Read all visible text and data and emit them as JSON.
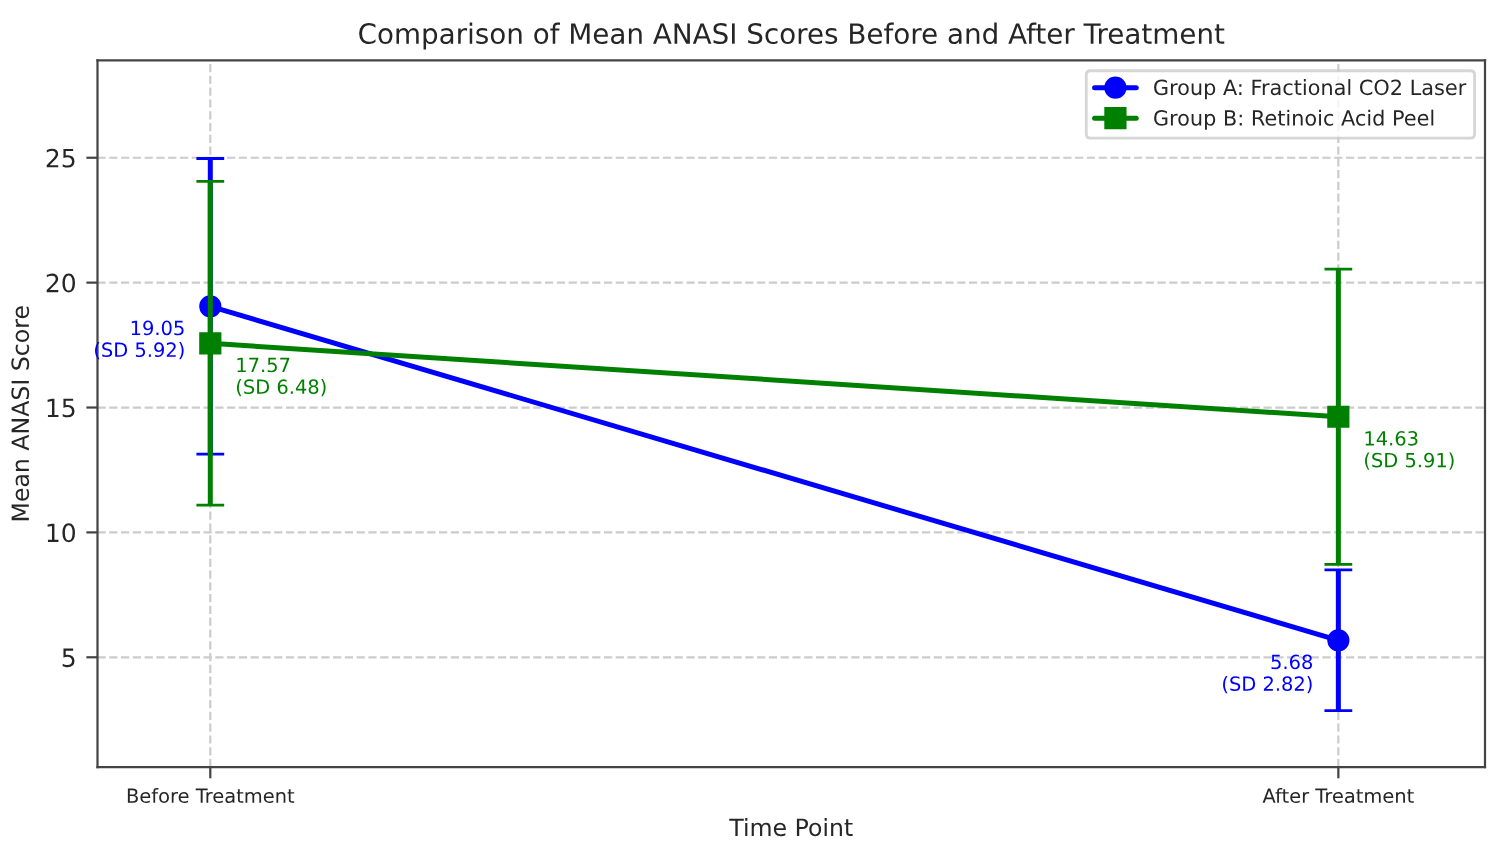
{
  "chart_data": {
    "type": "line",
    "title": "Comparison of Mean ANASI Scores Before and After Treatment",
    "xlabel": "Time Point",
    "ylabel": "Mean ANASI Score",
    "categories": [
      "Before Treatment",
      "After Treatment"
    ],
    "series": [
      {
        "name": "Group A: Fractional CO2 Laser",
        "color": "#0000ff",
        "marker": "circle",
        "values": [
          19.05,
          5.68
        ],
        "errors": [
          5.92,
          2.82
        ],
        "value_labels": [
          "19.05\n(SD 5.92)",
          "5.68\n(SD 2.82)"
        ]
      },
      {
        "name": "Group B: Retinoic Acid Peel",
        "color": "#008000",
        "marker": "square",
        "values": [
          17.57,
          14.63
        ],
        "errors": [
          6.48,
          5.91
        ],
        "value_labels": [
          "17.57\n(SD 6.48)",
          "14.63\n(SD 5.91)"
        ]
      }
    ],
    "ylim": [
      0.6,
      28.9
    ],
    "yticks": [
      5,
      10,
      15,
      20,
      25
    ],
    "grid": true,
    "legend": "top right",
    "line_style": "solid"
  }
}
